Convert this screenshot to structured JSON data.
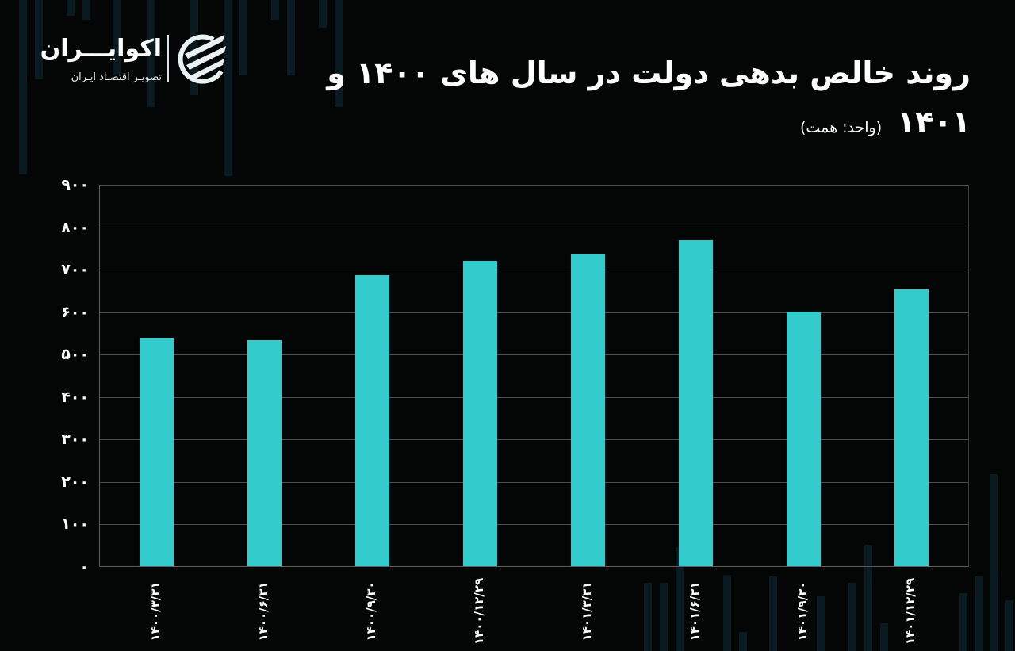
{
  "brand": {
    "name": "اکوایـــران",
    "tagline": "تصویـر اقتصـاد ایـران"
  },
  "header": {
    "title_line1": "روند خالص بدهی دولت در سال های ۱۴۰۰ و",
    "title_year": "۱۴۰۱",
    "unit": "(واحد: همت)"
  },
  "colors": {
    "background": "#040505",
    "bar": "#33cccc",
    "gridline": "#4a4f51",
    "text": "#ffffff"
  },
  "axis": {
    "y_ticks": [
      "۰",
      "۱۰۰",
      "۲۰۰",
      "۳۰۰",
      "۴۰۰",
      "۵۰۰",
      "۶۰۰",
      "۷۰۰",
      "۸۰۰",
      "۹۰۰"
    ],
    "x_labels": [
      "۱۴۰۰/۳/۳۱",
      "۱۴۰۰/۶/۳۱",
      "۱۴۰۰/۹/۳۰",
      "۱۴۰۰/۱۲/۲۹",
      "۱۴۰۱/۳/۳۱",
      "۱۴۰۱/۶/۳۱",
      "۱۴۰۱/۹/۳۰",
      "۱۴۰۱/۱۲/۲۹"
    ]
  },
  "chart_data": {
    "type": "bar",
    "title": "روند خالص بدهی دولت در سال های ۱۴۰۰ و ۱۴۰۱",
    "subtitle": "(واحد: همت)",
    "xlabel": "",
    "ylabel": "همت",
    "categories": [
      "1400/3/31",
      "1400/6/31",
      "1400/9/30",
      "1400/12/29",
      "1401/3/31",
      "1401/6/31",
      "1401/9/30",
      "1401/12/29"
    ],
    "values": [
      537,
      532,
      685,
      718,
      735,
      767,
      599,
      651
    ],
    "ylim": [
      0,
      900
    ],
    "yticks": [
      0,
      100,
      200,
      300,
      400,
      500,
      600,
      700,
      800,
      900
    ],
    "grid": true,
    "legend": null,
    "bar_color": "#33cccc"
  }
}
